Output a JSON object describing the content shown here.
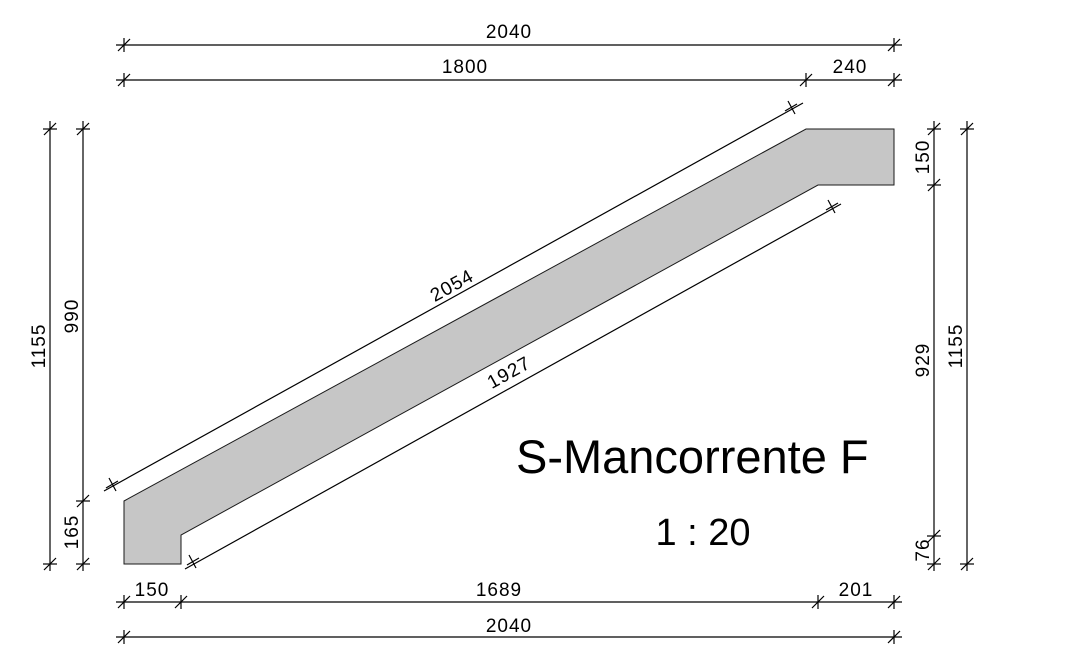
{
  "drawing": {
    "title": "S-Mancorrente F",
    "scale": "1 : 20",
    "fill_color": "#c6c6c6",
    "line_color": "#000000"
  },
  "dimensions": {
    "top_total": "2040",
    "top_left": "1800",
    "top_right": "240",
    "bottom_left": "150",
    "bottom_mid": "1689",
    "bottom_right": "201",
    "bottom_total": "2040",
    "left_outer": "1155",
    "left_inner_top": "990",
    "left_inner_bottom": "165",
    "right_top": "150",
    "right_mid": "929",
    "right_bottom": "76",
    "right_outer": "1155",
    "diag_upper": "2054",
    "diag_lower": "1927"
  }
}
